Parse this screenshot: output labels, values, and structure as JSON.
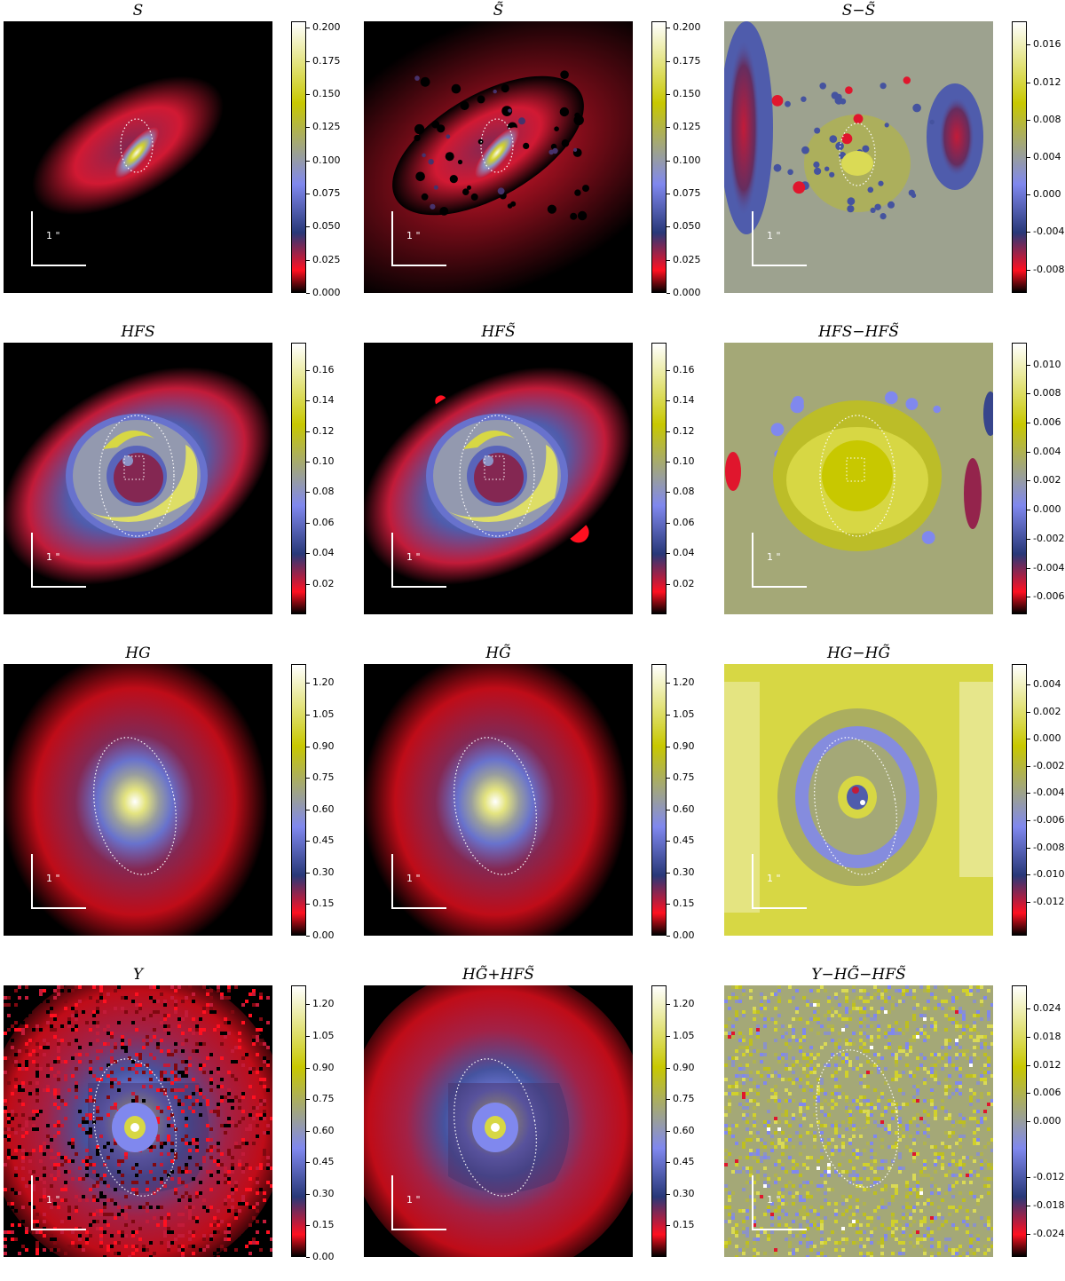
{
  "colors": {
    "colormap": [
      "#000000",
      "#ff1020",
      "#283878",
      "#8088ee",
      "#c8c800",
      "#ffffff"
    ],
    "scalebar": "#ffffff",
    "contour": "#ffffff"
  },
  "scale_label": "1 \"",
  "chart_data": [
    {
      "type": "heatmap",
      "title": "S",
      "ticks": [
        "0.000",
        "0.025",
        "0.050",
        "0.075",
        "0.100",
        "0.125",
        "0.150",
        "0.175",
        "0.200"
      ],
      "range": [
        0,
        0.205
      ],
      "pattern": "S"
    },
    {
      "type": "heatmap",
      "title": "S̃",
      "ticks": [
        "0.000",
        "0.025",
        "0.050",
        "0.075",
        "0.100",
        "0.125",
        "0.150",
        "0.175",
        "0.200"
      ],
      "range": [
        0,
        0.205
      ],
      "pattern": "St"
    },
    {
      "type": "heatmap",
      "title": "S−S̃",
      "ticks": [
        "-0.008",
        "-0.004",
        "0.000",
        "0.004",
        "0.008",
        "0.012",
        "0.016"
      ],
      "range": [
        -0.0105,
        0.0185
      ],
      "pattern": "Sres"
    },
    {
      "type": "heatmap",
      "title": "HFS",
      "ticks": [
        "0.02",
        "0.04",
        "0.06",
        "0.08",
        "0.10",
        "0.12",
        "0.14",
        "0.16"
      ],
      "range": [
        0,
        0.178
      ],
      "pattern": "HFS"
    },
    {
      "type": "heatmap",
      "title": "HFS̃",
      "ticks": [
        "0.02",
        "0.04",
        "0.06",
        "0.08",
        "0.10",
        "0.12",
        "0.14",
        "0.16"
      ],
      "range": [
        0,
        0.178
      ],
      "pattern": "HFSt"
    },
    {
      "type": "heatmap",
      "title": "HFS−HFS̃",
      "ticks": [
        "-0.006",
        "-0.004",
        "-0.002",
        "0.000",
        "0.002",
        "0.004",
        "0.006",
        "0.008",
        "0.010"
      ],
      "range": [
        -0.0072,
        0.0115
      ],
      "pattern": "HFSres"
    },
    {
      "type": "heatmap",
      "title": "HG",
      "ticks": [
        "0.00",
        "0.15",
        "0.30",
        "0.45",
        "0.60",
        "0.75",
        "0.90",
        "1.05",
        "1.20"
      ],
      "range": [
        0,
        1.29
      ],
      "pattern": "HG"
    },
    {
      "type": "heatmap",
      "title": "HG̃",
      "ticks": [
        "0.00",
        "0.15",
        "0.30",
        "0.45",
        "0.60",
        "0.75",
        "0.90",
        "1.05",
        "1.20"
      ],
      "range": [
        0,
        1.29
      ],
      "pattern": "HGt"
    },
    {
      "type": "heatmap",
      "title": "HG−HG̃",
      "ticks": [
        "-0.012",
        "-0.010",
        "-0.008",
        "-0.006",
        "-0.004",
        "-0.002",
        "0.000",
        "0.002",
        "0.004"
      ],
      "range": [
        -0.0145,
        0.0055
      ],
      "pattern": "HGres"
    },
    {
      "type": "heatmap",
      "title": "Y",
      "ticks": [
        "0.00",
        "0.15",
        "0.30",
        "0.45",
        "0.60",
        "0.75",
        "0.90",
        "1.05",
        "1.20"
      ],
      "range": [
        0,
        1.29
      ],
      "pattern": "Y"
    },
    {
      "type": "heatmap",
      "title": "HG̃+HFS̃",
      "ticks": [
        "0.15",
        "0.30",
        "0.45",
        "0.60",
        "0.75",
        "0.90",
        "1.05",
        "1.20"
      ],
      "range": [
        0,
        1.29
      ],
      "pattern": "Sum"
    },
    {
      "type": "heatmap",
      "title": "Y−HG̃−HFS̃",
      "ticks": [
        "-0.024",
        "-0.018",
        "-0.012",
        "0.000",
        "0.006",
        "0.012",
        "0.018",
        "0.024"
      ],
      "range": [
        -0.029,
        0.029
      ],
      "pattern": "Yres"
    }
  ]
}
